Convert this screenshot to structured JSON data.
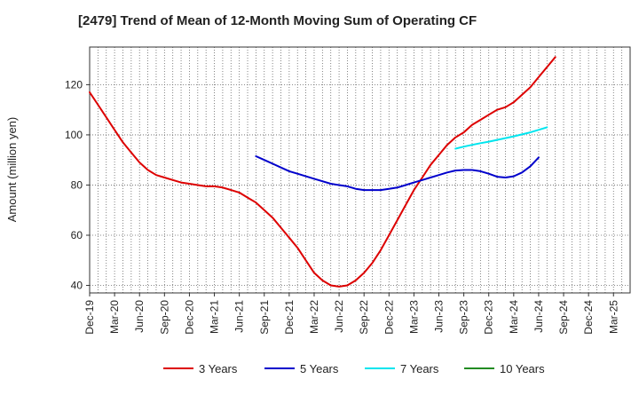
{
  "chart_data": {
    "type": "line",
    "title": "[2479]  Trend of Mean of 12-Month Moving Sum of Operating CF",
    "xlabel": "",
    "ylabel": "Amount (million yen)",
    "ylim": [
      37,
      135
    ],
    "yticks": [
      40,
      60,
      80,
      100,
      120
    ],
    "x_tick_labels": [
      "Dec-19",
      "Mar-20",
      "Jun-20",
      "Sep-20",
      "Dec-20",
      "Mar-21",
      "Jun-21",
      "Sep-21",
      "Dec-21",
      "Mar-22",
      "Jun-22",
      "Sep-22",
      "Dec-22",
      "Mar-23",
      "Jun-23",
      "Sep-23",
      "Dec-23",
      "Mar-24",
      "Jun-24",
      "Sep-24",
      "Dec-24",
      "Mar-25"
    ],
    "x_range_months": [
      0,
      65
    ],
    "grid": true,
    "legend_position": "bottom",
    "series": [
      {
        "name": "3 Years",
        "color": "#dd0000",
        "points": [
          [
            0,
            117
          ],
          [
            1,
            112
          ],
          [
            2,
            107
          ],
          [
            3,
            102
          ],
          [
            4,
            97
          ],
          [
            5,
            93
          ],
          [
            6,
            89
          ],
          [
            7,
            86
          ],
          [
            8,
            84
          ],
          [
            9,
            83
          ],
          [
            10,
            82
          ],
          [
            11,
            81
          ],
          [
            12,
            80.5
          ],
          [
            13,
            80
          ],
          [
            14,
            79.5
          ],
          [
            15,
            79.5
          ],
          [
            16,
            79
          ],
          [
            17,
            78
          ],
          [
            18,
            77
          ],
          [
            19,
            75
          ],
          [
            20,
            73
          ],
          [
            21,
            70
          ],
          [
            22,
            67
          ],
          [
            23,
            63
          ],
          [
            24,
            59
          ],
          [
            25,
            55
          ],
          [
            26,
            50
          ],
          [
            27,
            45
          ],
          [
            28,
            42
          ],
          [
            29,
            40
          ],
          [
            30,
            39.5
          ],
          [
            31,
            40
          ],
          [
            32,
            42
          ],
          [
            33,
            45
          ],
          [
            34,
            49
          ],
          [
            35,
            54
          ],
          [
            36,
            60
          ],
          [
            37,
            66
          ],
          [
            38,
            72
          ],
          [
            39,
            78
          ],
          [
            40,
            83
          ],
          [
            41,
            88
          ],
          [
            42,
            92
          ],
          [
            43,
            96
          ],
          [
            44,
            99
          ],
          [
            45,
            101
          ],
          [
            46,
            104
          ],
          [
            47,
            106
          ],
          [
            48,
            108
          ],
          [
            49,
            110
          ],
          [
            50,
            111
          ],
          [
            51,
            113
          ],
          [
            52,
            116
          ],
          [
            53,
            119
          ],
          [
            54,
            123
          ],
          [
            55,
            127
          ],
          [
            56,
            131
          ]
        ]
      },
      {
        "name": "5 Years",
        "color": "#0000cc",
        "points": [
          [
            20,
            91.5
          ],
          [
            21,
            90
          ],
          [
            22,
            88.5
          ],
          [
            23,
            87
          ],
          [
            24,
            85.5
          ],
          [
            25,
            84.5
          ],
          [
            26,
            83.5
          ],
          [
            27,
            82.5
          ],
          [
            28,
            81.5
          ],
          [
            29,
            80.5
          ],
          [
            30,
            80
          ],
          [
            31,
            79.5
          ],
          [
            32,
            78.5
          ],
          [
            33,
            78
          ],
          [
            34,
            78
          ],
          [
            35,
            78
          ],
          [
            36,
            78.5
          ],
          [
            37,
            79
          ],
          [
            38,
            80
          ],
          [
            39,
            81
          ],
          [
            40,
            82
          ],
          [
            41,
            83
          ],
          [
            42,
            84
          ],
          [
            43,
            85
          ],
          [
            44,
            85.8
          ],
          [
            45,
            86
          ],
          [
            46,
            86
          ],
          [
            47,
            85.5
          ],
          [
            48,
            84.5
          ],
          [
            49,
            83.3
          ],
          [
            50,
            83
          ],
          [
            51,
            83.5
          ],
          [
            52,
            85
          ],
          [
            53,
            87.5
          ],
          [
            54,
            91
          ]
        ]
      },
      {
        "name": "7 Years",
        "color": "#00e5ee",
        "points": [
          [
            44,
            94.5
          ],
          [
            45,
            95.3
          ],
          [
            46,
            96
          ],
          [
            47,
            96.7
          ],
          [
            48,
            97.3
          ],
          [
            49,
            98
          ],
          [
            50,
            98.7
          ],
          [
            51,
            99.4
          ],
          [
            52,
            100.2
          ],
          [
            53,
            101
          ],
          [
            54,
            102
          ],
          [
            55,
            103
          ]
        ]
      },
      {
        "name": "10 Years",
        "color": "#228b22",
        "points": []
      }
    ]
  }
}
